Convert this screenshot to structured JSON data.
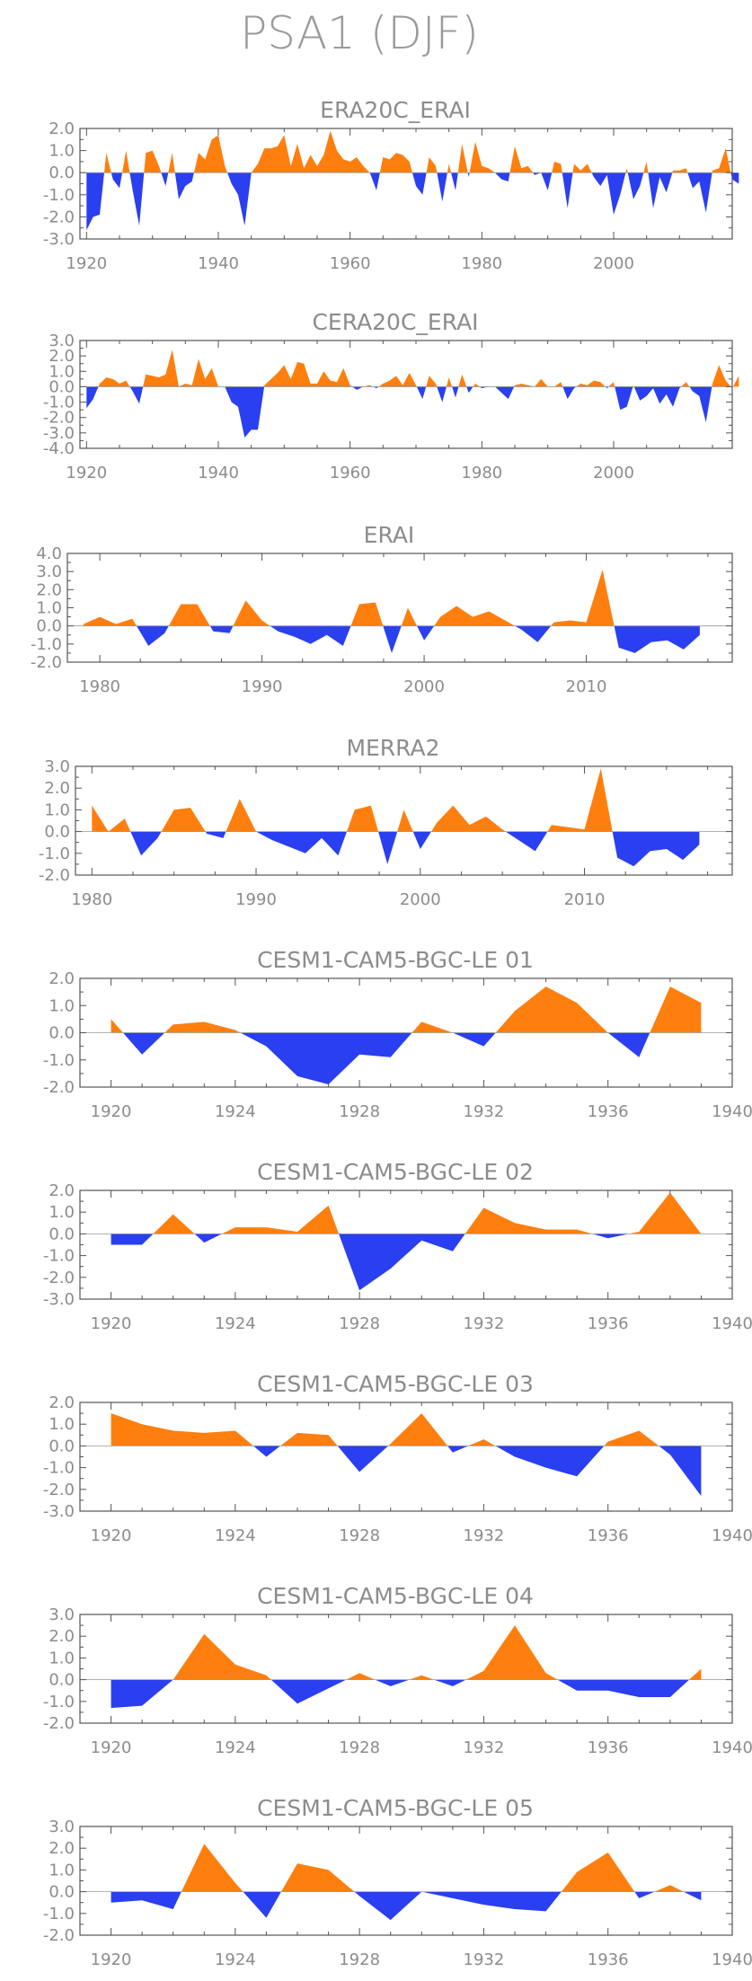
{
  "figure": {
    "title": "PSA1 (DJF)"
  },
  "colors": {
    "positive": "#ff7f0e",
    "negative": "#2a3ff0",
    "frame": "#555555",
    "text": "#8c8c8c"
  },
  "chart_data": [
    {
      "type": "area",
      "title": "ERA20C_ERAI",
      "xlim": [
        1919,
        2018
      ],
      "ylim": [
        -3,
        2
      ],
      "xticks": [
        1920,
        1940,
        1960,
        1980,
        2000
      ],
      "yticks": [
        -3.0,
        -2.0,
        -1.0,
        0.0,
        1.0,
        2.0
      ],
      "x_start": 1920,
      "values": [
        -2.6,
        -2.0,
        -1.9,
        0.9,
        -0.3,
        -0.7,
        1.0,
        -0.8,
        -2.4,
        0.9,
        1.0,
        0.3,
        -0.6,
        0.9,
        -1.2,
        -0.6,
        -0.4,
        0.9,
        0.6,
        1.5,
        1.7,
        0.3,
        -0.5,
        -1.0,
        -2.4,
        0.0,
        0.4,
        1.1,
        1.1,
        1.2,
        1.7,
        0.3,
        1.3,
        0.2,
        0.8,
        0.3,
        0.8,
        1.9,
        1.0,
        0.6,
        0.5,
        0.7,
        0.3,
        0.0,
        -0.8,
        0.7,
        0.6,
        0.9,
        0.8,
        0.5,
        -0.6,
        -1.0,
        0.7,
        0.3,
        -1.3,
        0.4,
        -0.8,
        1.3,
        -0.2,
        1.4,
        0.3,
        0.2,
        0.0,
        -0.3,
        -0.4,
        1.2,
        0.2,
        0.3,
        -0.1,
        0.0,
        -0.8,
        0.5,
        0.4,
        -1.6,
        0.4,
        0.1,
        0.4,
        -0.2,
        -0.6,
        -0.1,
        -1.9,
        -1.0,
        0.2,
        -1.2,
        -0.6,
        0.5,
        -1.6,
        -0.2,
        -0.9,
        0.1,
        0.1,
        0.2,
        -0.7,
        -0.4,
        -1.8,
        0.1,
        0.2,
        1.1,
        -0.3,
        -0.5
      ]
    },
    {
      "type": "area",
      "title": "CERA20C_ERAI",
      "xlim": [
        1919,
        2018
      ],
      "ylim": [
        -4,
        3
      ],
      "xticks": [
        1920,
        1940,
        1960,
        1980,
        2000
      ],
      "yticks": [
        -4.0,
        -3.0,
        -2.0,
        -1.0,
        0.0,
        1.0,
        2.0,
        3.0
      ],
      "x_start": 1920,
      "values": [
        -1.4,
        -0.8,
        0.2,
        0.6,
        0.5,
        0.2,
        0.4,
        -0.3,
        -1.1,
        0.8,
        0.7,
        0.6,
        0.8,
        2.4,
        0.0,
        0.2,
        0.1,
        1.8,
        0.5,
        1.2,
        0.0,
        0.0,
        -1.0,
        -1.3,
        -3.3,
        -2.8,
        -2.8,
        0.1,
        0.5,
        0.9,
        1.4,
        0.5,
        1.6,
        1.5,
        0.2,
        0.2,
        1.0,
        0.4,
        0.3,
        1.2,
        0.1,
        -0.2,
        0.0,
        0.1,
        -0.1,
        0.2,
        0.4,
        0.7,
        0.1,
        0.9,
        0.1,
        -0.8,
        0.7,
        0.2,
        -1.0,
        0.6,
        -0.7,
        0.8,
        -0.4,
        0.2,
        -0.1,
        0.0,
        0.0,
        -0.4,
        -0.8,
        0.1,
        0.2,
        0.1,
        0.0,
        0.5,
        0.0,
        0.0,
        0.3,
        -0.8,
        -0.1,
        0.2,
        0.1,
        0.4,
        0.3,
        -0.1,
        0.3,
        -1.5,
        -1.3,
        0.1,
        -0.9,
        -0.6,
        -0.1,
        -1.1,
        -0.5,
        -1.3,
        -0.1,
        0.3,
        -0.3,
        -0.6,
        -2.3,
        0.2,
        1.4,
        0.4,
        -0.1,
        0.7
      ]
    },
    {
      "type": "area",
      "title": "ERAI",
      "xlim": [
        1978,
        2019
      ],
      "ylim": [
        -2,
        4
      ],
      "xticks": [
        1980,
        1990,
        2000,
        2010
      ],
      "yticks": [
        -2.0,
        -1.0,
        0.0,
        1.0,
        2.0,
        3.0,
        4.0
      ],
      "x_start": 1979,
      "values": [
        0.1,
        0.5,
        0.1,
        0.4,
        -1.1,
        -0.4,
        1.2,
        1.2,
        -0.3,
        -0.4,
        1.4,
        0.3,
        -0.3,
        -0.6,
        -1.0,
        -0.5,
        -1.1,
        1.2,
        1.3,
        -1.5,
        1.0,
        -0.8,
        0.5,
        1.1,
        0.5,
        0.8,
        0.3,
        -0.2,
        -0.9,
        0.2,
        0.3,
        0.2,
        3.1,
        -1.2,
        -1.5,
        -0.9,
        -0.8,
        -1.3,
        -0.5
      ]
    },
    {
      "type": "area",
      "title": "MERRA2",
      "xlim": [
        1979,
        2019
      ],
      "ylim": [
        -2,
        3
      ],
      "xticks": [
        1980,
        1990,
        2000,
        2010
      ],
      "yticks": [
        -2.0,
        -1.0,
        0.0,
        1.0,
        2.0,
        3.0
      ],
      "x_start": 1980,
      "values": [
        1.2,
        0.0,
        0.6,
        -1.1,
        -0.3,
        1.0,
        1.1,
        -0.1,
        -0.3,
        1.5,
        0.0,
        -0.4,
        -0.7,
        -1.0,
        -0.3,
        -1.1,
        1.0,
        1.2,
        -1.5,
        1.0,
        -0.8,
        0.4,
        1.2,
        0.3,
        0.7,
        0.1,
        -0.4,
        -0.9,
        0.3,
        0.2,
        0.1,
        2.9,
        -1.2,
        -1.6,
        -0.9,
        -0.8,
        -1.3,
        -0.6
      ]
    },
    {
      "type": "area",
      "title": "CESM1-CAM5-BGC-LE 01",
      "xlim": [
        1919,
        1940
      ],
      "ylim": [
        -2,
        2
      ],
      "xticks": [
        1920,
        1924,
        1928,
        1932,
        1936,
        1940
      ],
      "yticks": [
        -2.0,
        -1.0,
        0.0,
        1.0,
        2.0
      ],
      "x_start": 1920,
      "values": [
        0.5,
        -0.8,
        0.3,
        0.4,
        0.1,
        -0.5,
        -1.6,
        -1.9,
        -0.8,
        -0.9,
        0.4,
        0.0,
        -0.5,
        0.8,
        1.7,
        1.1,
        0.0,
        -0.9,
        1.7,
        1.1
      ]
    },
    {
      "type": "area",
      "title": "CESM1-CAM5-BGC-LE 02",
      "xlim": [
        1919,
        1940
      ],
      "ylim": [
        -3,
        2
      ],
      "xticks": [
        1920,
        1924,
        1928,
        1932,
        1936,
        1940
      ],
      "yticks": [
        -3.0,
        -2.0,
        -1.0,
        0.0,
        1.0,
        2.0
      ],
      "x_start": 1920,
      "values": [
        -0.5,
        -0.5,
        0.9,
        -0.4,
        0.3,
        0.3,
        0.1,
        1.3,
        -2.6,
        -1.6,
        -0.3,
        -0.8,
        1.2,
        0.5,
        0.2,
        0.2,
        -0.2,
        0.1,
        1.9,
        0.0
      ]
    },
    {
      "type": "area",
      "title": "CESM1-CAM5-BGC-LE 03",
      "xlim": [
        1919,
        1940
      ],
      "ylim": [
        -3,
        2
      ],
      "xticks": [
        1920,
        1924,
        1928,
        1932,
        1936,
        1940
      ],
      "yticks": [
        -3.0,
        -2.0,
        -1.0,
        0.0,
        1.0,
        2.0
      ],
      "x_start": 1920,
      "values": [
        1.5,
        1.0,
        0.7,
        0.6,
        0.7,
        -0.5,
        0.6,
        0.5,
        -1.2,
        0.1,
        1.5,
        -0.3,
        0.3,
        -0.5,
        -1.0,
        -1.4,
        0.2,
        0.7,
        -0.4,
        -2.3
      ]
    },
    {
      "type": "area",
      "title": "CESM1-CAM5-BGC-LE 04",
      "xlim": [
        1919,
        1940
      ],
      "ylim": [
        -2,
        3
      ],
      "xticks": [
        1920,
        1924,
        1928,
        1932,
        1936,
        1940
      ],
      "yticks": [
        -2.0,
        -1.0,
        0.0,
        1.0,
        2.0,
        3.0
      ],
      "x_start": 1920,
      "values": [
        -1.3,
        -1.2,
        0.0,
        2.1,
        0.7,
        0.2,
        -1.1,
        -0.4,
        0.3,
        -0.3,
        0.2,
        -0.3,
        0.4,
        2.5,
        0.3,
        -0.5,
        -0.5,
        -0.8,
        -0.8,
        0.5
      ]
    },
    {
      "type": "area",
      "title": "CESM1-CAM5-BGC-LE 05",
      "xlim": [
        1919,
        1940
      ],
      "ylim": [
        -2,
        3
      ],
      "xticks": [
        1920,
        1924,
        1928,
        1932,
        1936,
        1940
      ],
      "yticks": [
        -2.0,
        -1.0,
        0.0,
        1.0,
        2.0,
        3.0
      ],
      "x_start": 1920,
      "values": [
        -0.5,
        -0.4,
        -0.8,
        2.2,
        0.4,
        -1.2,
        1.3,
        1.0,
        -0.2,
        -1.3,
        0.0,
        -0.3,
        -0.6,
        -0.8,
        -0.9,
        0.9,
        1.8,
        -0.3,
        0.3,
        -0.4
      ]
    }
  ]
}
